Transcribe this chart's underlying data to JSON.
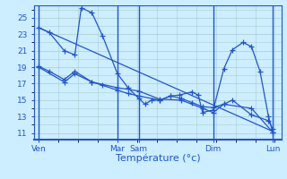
{
  "background_color": "#cceeff",
  "grid_color": "#aacccc",
  "line_color": "#2255cc",
  "marker": "+",
  "marker_size": 4,
  "linewidth": 0.9,
  "xlabel": "Température (°c)",
  "xlabel_fontsize": 8,
  "yticks": [
    11,
    13,
    15,
    17,
    19,
    21,
    23,
    25
  ],
  "ylim": [
    10.2,
    26.5
  ],
  "xtick_labels": [
    "Ven",
    "Mar",
    "Sam",
    "Dim",
    "Lun"
  ],
  "xtick_positions": [
    0,
    37,
    47,
    82,
    110
  ],
  "xlim": [
    -2,
    114
  ],
  "series1": [
    [
      0,
      23.8
    ],
    [
      5,
      23.2
    ],
    [
      12,
      21.0
    ],
    [
      17,
      20.5
    ],
    [
      20,
      26.2
    ],
    [
      25,
      25.6
    ],
    [
      30,
      22.8
    ],
    [
      37,
      18.2
    ],
    [
      42,
      16.5
    ],
    [
      47,
      15.2
    ],
    [
      50,
      14.5
    ],
    [
      53,
      15.0
    ],
    [
      57,
      15.0
    ],
    [
      62,
      15.5
    ],
    [
      66,
      15.6
    ],
    [
      72,
      16.0
    ],
    [
      75,
      15.6
    ],
    [
      77,
      13.5
    ],
    [
      82,
      13.8
    ],
    [
      87,
      18.8
    ],
    [
      91,
      21.1
    ],
    [
      96,
      22.0
    ],
    [
      100,
      21.5
    ],
    [
      104,
      18.5
    ],
    [
      108,
      13.0
    ],
    [
      110,
      11.1
    ]
  ],
  "series2": [
    [
      0,
      19.1
    ],
    [
      5,
      18.5
    ],
    [
      12,
      17.5
    ],
    [
      17,
      18.5
    ],
    [
      25,
      17.2
    ],
    [
      30,
      16.8
    ],
    [
      37,
      16.2
    ],
    [
      42,
      15.8
    ],
    [
      47,
      15.5
    ],
    [
      57,
      15.0
    ],
    [
      62,
      15.5
    ],
    [
      67,
      15.2
    ],
    [
      72,
      14.7
    ],
    [
      77,
      14.2
    ],
    [
      82,
      14.1
    ],
    [
      87,
      14.5
    ],
    [
      91,
      15.0
    ],
    [
      100,
      13.2
    ],
    [
      108,
      12.5
    ],
    [
      110,
      11.5
    ]
  ],
  "series3": [
    [
      0,
      19.0
    ],
    [
      12,
      17.2
    ],
    [
      17,
      18.2
    ],
    [
      25,
      17.2
    ],
    [
      37,
      16.5
    ],
    [
      47,
      16.1
    ],
    [
      57,
      15.1
    ],
    [
      67,
      15.0
    ],
    [
      77,
      14.0
    ],
    [
      82,
      13.5
    ],
    [
      87,
      14.5
    ],
    [
      100,
      14.0
    ],
    [
      110,
      11.1
    ]
  ],
  "series4": [
    [
      0,
      23.8
    ],
    [
      110,
      11.2
    ]
  ],
  "vlines": [
    0,
    37,
    47,
    82,
    110
  ]
}
